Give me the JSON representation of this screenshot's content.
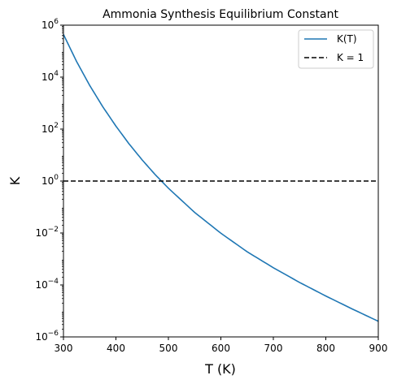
{
  "chart_data": {
    "type": "line",
    "title": "Ammonia Synthesis Equilibrium Constant",
    "xlabel": "T (K)",
    "ylabel": "K",
    "xlim": [
      300,
      900
    ],
    "ylim": [
      1e-06,
      1000000.0
    ],
    "yscale": "log",
    "grid": false,
    "legend_position": "top-right",
    "x_ticks": [
      "300",
      "400",
      "500",
      "600",
      "700",
      "800",
      "900"
    ],
    "y_ticks": [
      {
        "base": "10",
        "exp": "−6",
        "value": 1e-06
      },
      {
        "base": "10",
        "exp": "−4",
        "value": 0.0001
      },
      {
        "base": "10",
        "exp": "−2",
        "value": 0.01
      },
      {
        "base": "10",
        "exp": "0",
        "value": 1
      },
      {
        "base": "10",
        "exp": "2",
        "value": 100
      },
      {
        "base": "10",
        "exp": "4",
        "value": 10000
      },
      {
        "base": "10",
        "exp": "6",
        "value": 1000000
      }
    ],
    "series": [
      {
        "name": "K(T)",
        "color": "#1f77b4",
        "style": "solid",
        "x": [
          300,
          325,
          350,
          375,
          400,
          425,
          450,
          475,
          500,
          550,
          600,
          650,
          700,
          750,
          800,
          850,
          900
        ],
        "y": [
          440000,
          40000,
          4800,
          720,
          130,
          27,
          6.5,
          1.75,
          0.53,
          0.062,
          0.0098,
          0.0019,
          0.00046,
          0.000125,
          3.75e-05,
          1.2e-05,
          4e-06
        ]
      },
      {
        "name": "K = 1",
        "color": "#000000",
        "style": "dashed",
        "x": [
          300,
          900
        ],
        "y": [
          1,
          1
        ]
      }
    ]
  }
}
